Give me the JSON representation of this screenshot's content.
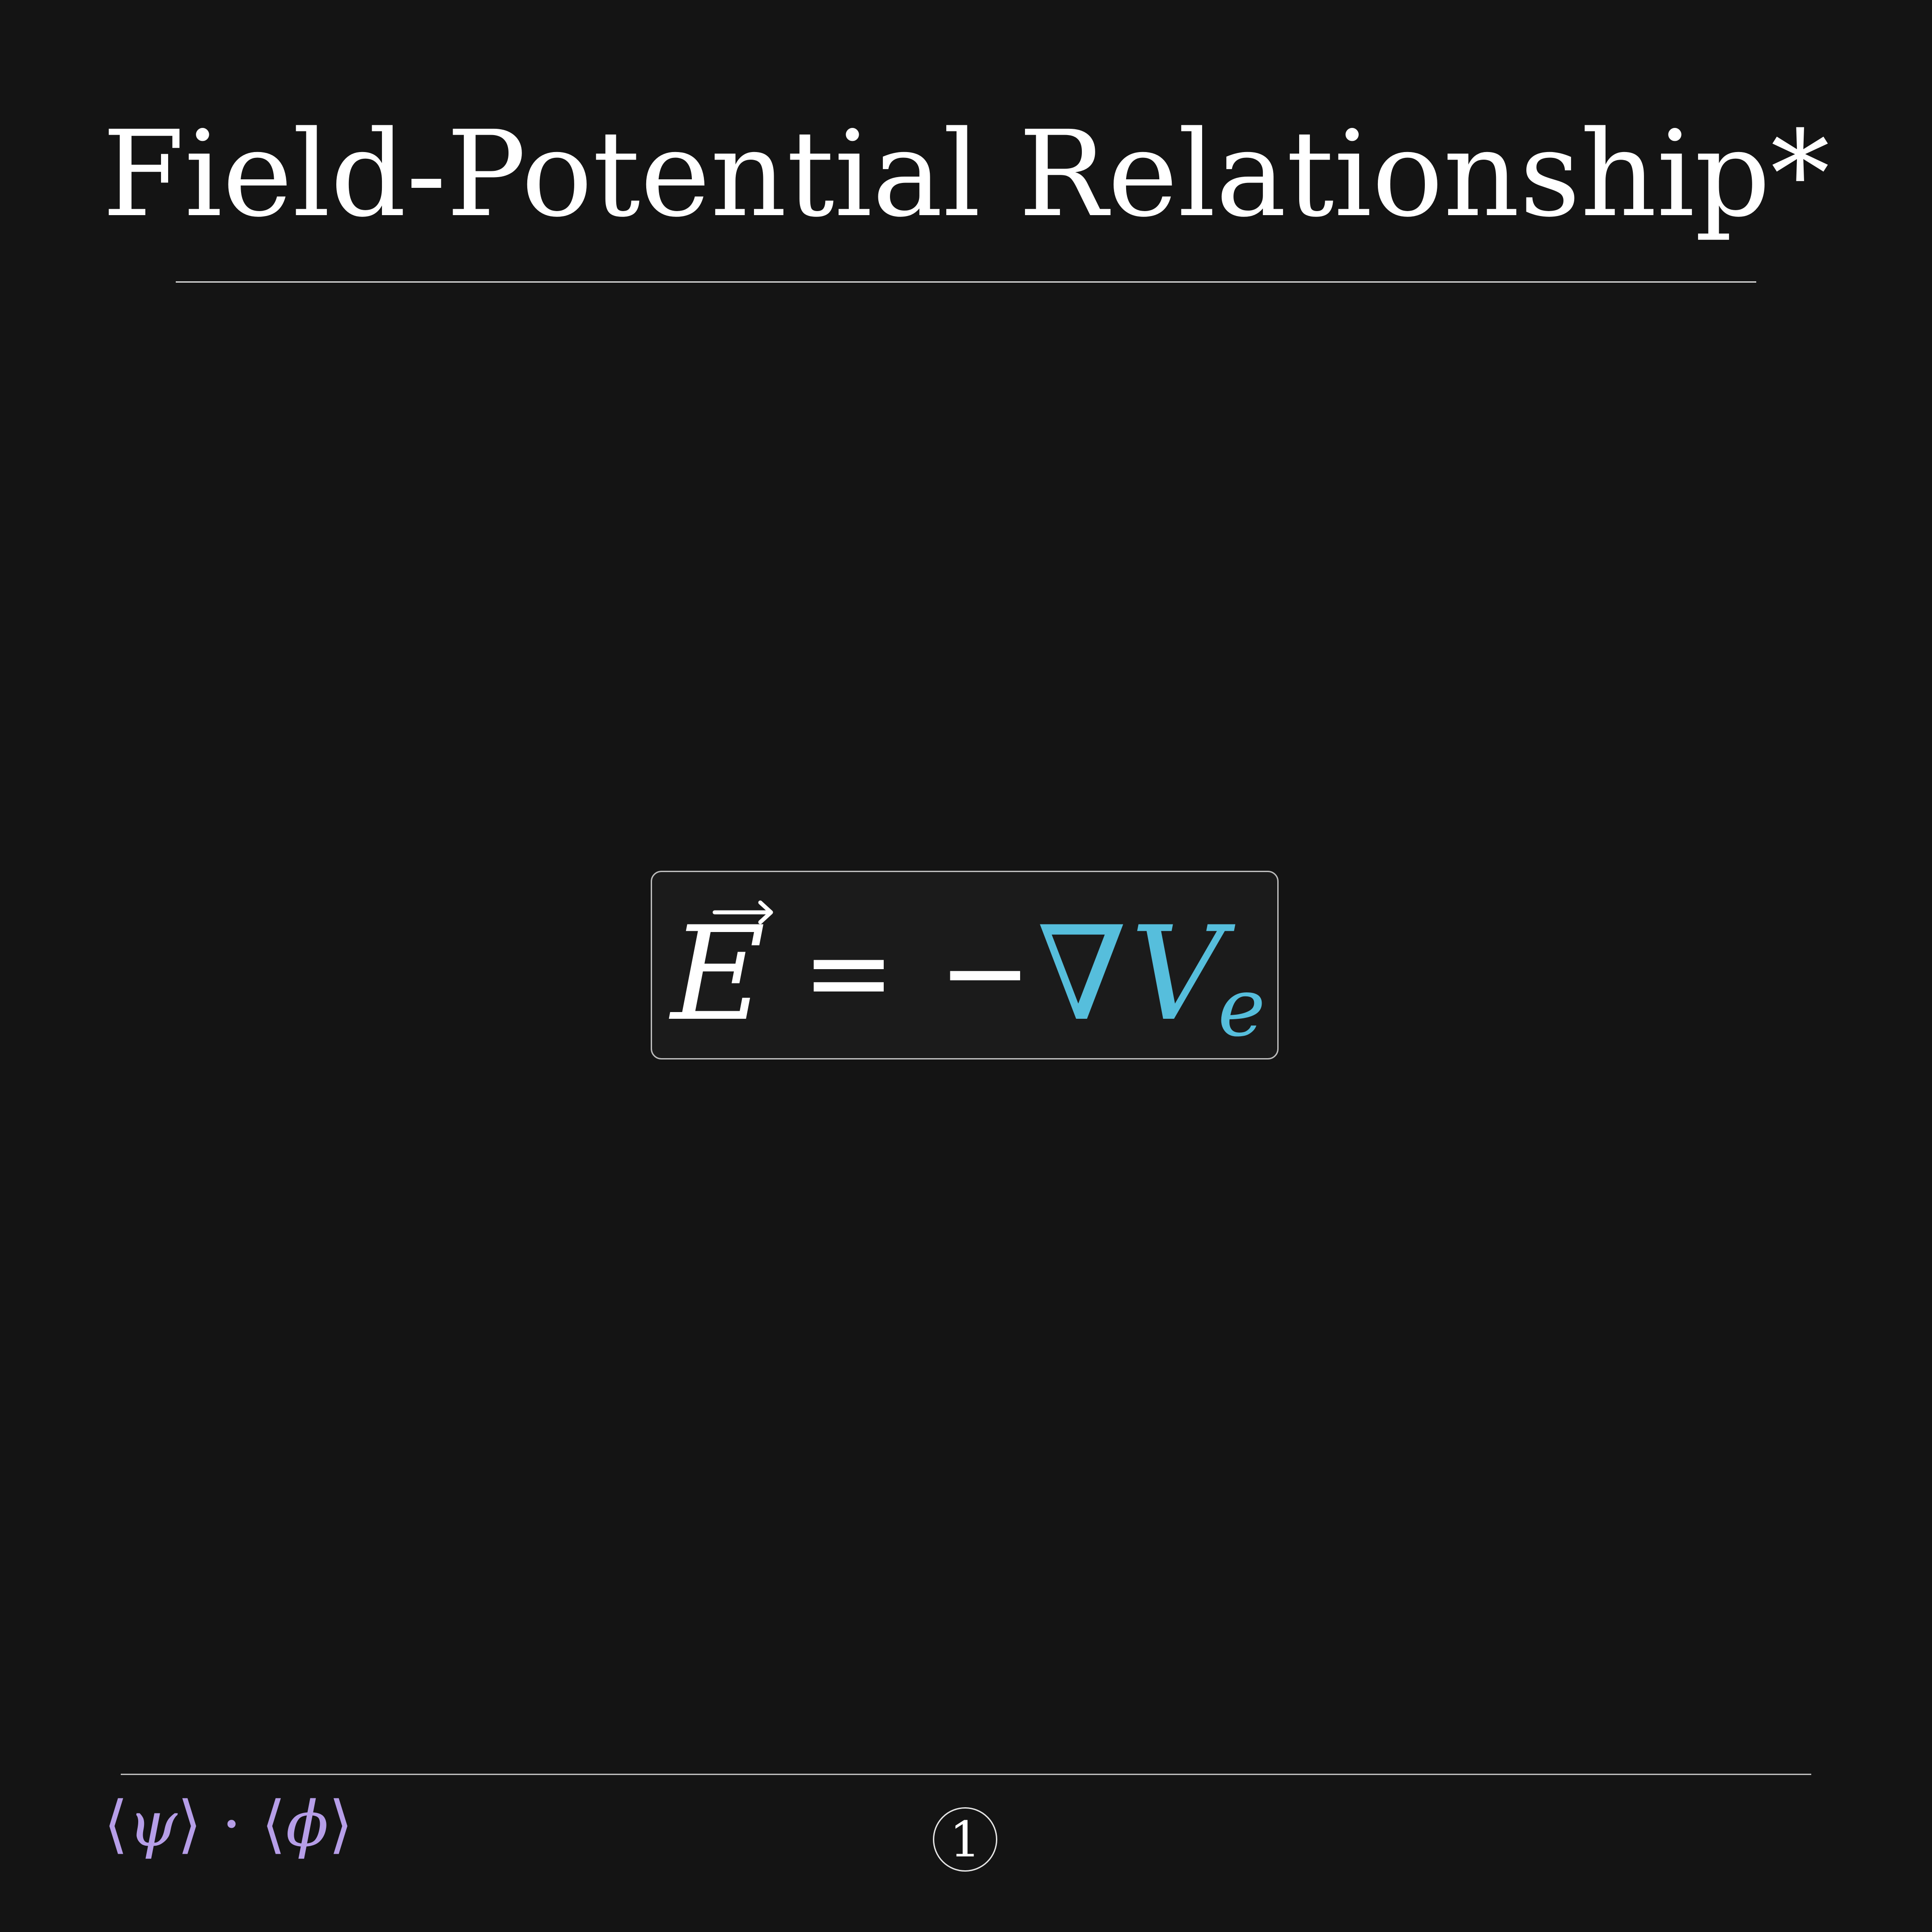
{
  "slide": {
    "title": "Field-Potential Relationship*"
  },
  "equation": {
    "lhs": "E",
    "equals": "=",
    "minus": "−",
    "nabla": "∇",
    "variable": "V",
    "subscript": "e",
    "colors": {
      "main": "#ffffff",
      "accent": "#56bedc"
    }
  },
  "footer": {
    "logo": {
      "open1": "⟨",
      "psi": "ψ",
      "close1": "⟩",
      "dot": " · ",
      "open2": "⟨",
      "phi": "ϕ",
      "close2": "⟩",
      "color": "#b69ee8"
    },
    "page_number": "1"
  }
}
